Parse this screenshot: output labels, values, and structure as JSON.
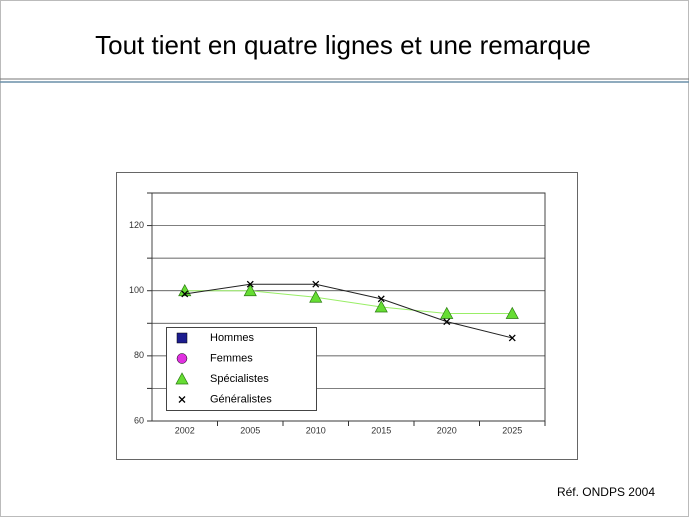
{
  "title": "Tout tient en quatre lignes et une remarque",
  "footer": "Réf. ONDPS 2004",
  "chart_data": {
    "type": "line",
    "categories": [
      "2002",
      "2005",
      "2010",
      "2015",
      "2020",
      "2025"
    ],
    "ylim": [
      60,
      130
    ],
    "yticks": [
      60,
      80,
      100,
      120
    ],
    "minor_yticks": [
      70,
      90,
      110,
      130
    ],
    "grid": true,
    "legend": "bottom-left",
    "series": [
      {
        "name": "Hommes",
        "color": "#1c1c8e",
        "marker": "square",
        "values": [
          null,
          null,
          null,
          null,
          null,
          null
        ]
      },
      {
        "name": "Femmes",
        "color": "#e030e0",
        "marker": "circle",
        "values": [
          null,
          null,
          null,
          null,
          null,
          null
        ]
      },
      {
        "name": "Spécialistes",
        "color": "#66dd33",
        "line_color": "#99ee66",
        "marker": "triangle",
        "values": [
          100,
          100,
          98,
          95,
          93,
          93
        ]
      },
      {
        "name": "Généralistes",
        "color": "#000000",
        "line_color": "#222222",
        "marker": "x",
        "values": [
          99,
          102,
          102,
          97.5,
          90.5,
          85.5
        ]
      }
    ]
  }
}
